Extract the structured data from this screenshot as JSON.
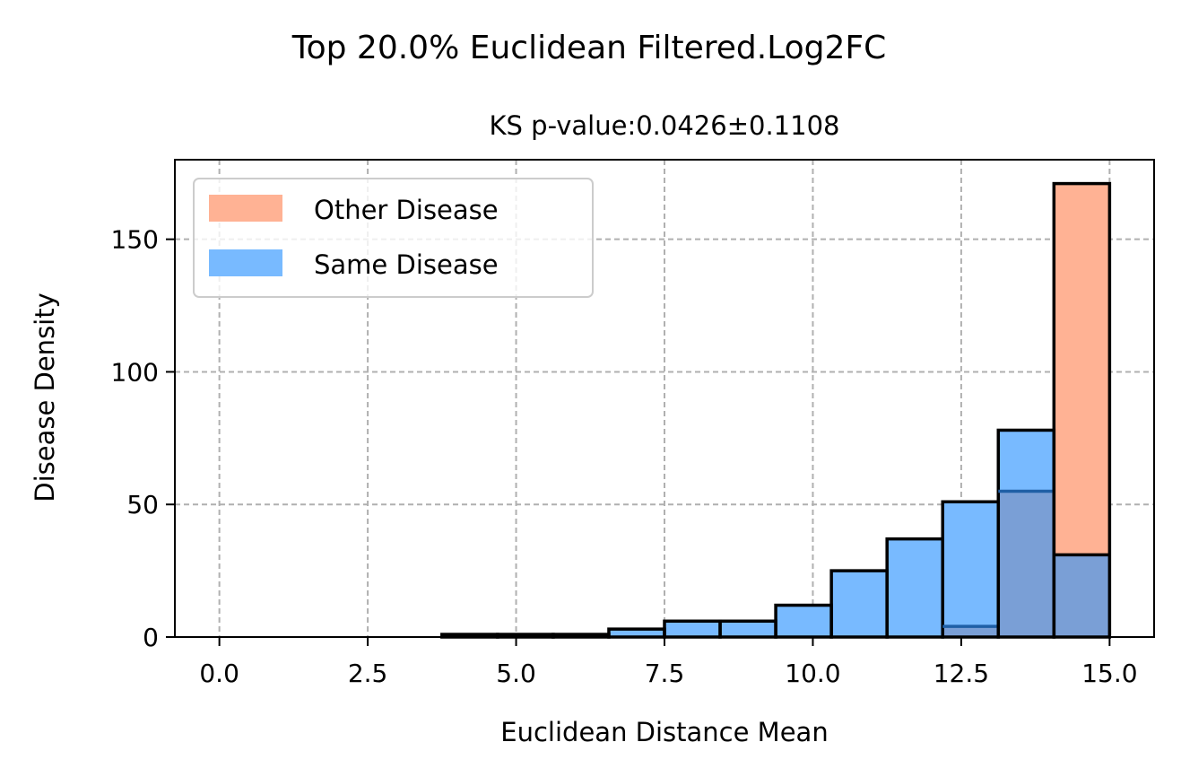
{
  "title": "Top 20.0% Euclidean Filtered.Log2FC",
  "subtitle": "KS p-value:0.0426±0.1108",
  "chart_data": {
    "type": "bar",
    "title": "Top 20.0% Euclidean Filtered.Log2FC",
    "subtitle": "KS p-value:0.0426±0.1108",
    "xlabel": "Euclidean Distance Mean",
    "ylabel": "Disease Density",
    "xlim": [
      -0.75,
      15.75
    ],
    "ylim": [
      0,
      180
    ],
    "xticks": [
      0.0,
      2.5,
      5.0,
      7.5,
      10.0,
      12.5,
      15.0
    ],
    "xtick_labels": [
      "0.0",
      "2.5",
      "5.0",
      "7.5",
      "10.0",
      "12.5",
      "15.0"
    ],
    "yticks": [
      0,
      50,
      100,
      150
    ],
    "ytick_labels": [
      "0",
      "50",
      "100",
      "150"
    ],
    "grid": true,
    "legend_position": "upper-left",
    "bin_edges": [
      0.0,
      0.9375,
      1.875,
      2.8125,
      3.75,
      4.6875,
      5.625,
      6.5625,
      7.5,
      8.4375,
      9.375,
      10.3125,
      11.25,
      12.1875,
      13.125,
      14.0625,
      15.0
    ],
    "series": [
      {
        "name": "Other Disease",
        "color": "#ffb294",
        "values": [
          0,
          0,
          0,
          0,
          0,
          0,
          0,
          0,
          0,
          0,
          0,
          0,
          0,
          4,
          55,
          171
        ]
      },
      {
        "name": "Same Disease",
        "color": "#78baff",
        "values": [
          0,
          0,
          0,
          0,
          1,
          1,
          1,
          3,
          6,
          6,
          12,
          25,
          37,
          51,
          78,
          31
        ]
      }
    ],
    "overlap_color": "#7a9fd6"
  }
}
